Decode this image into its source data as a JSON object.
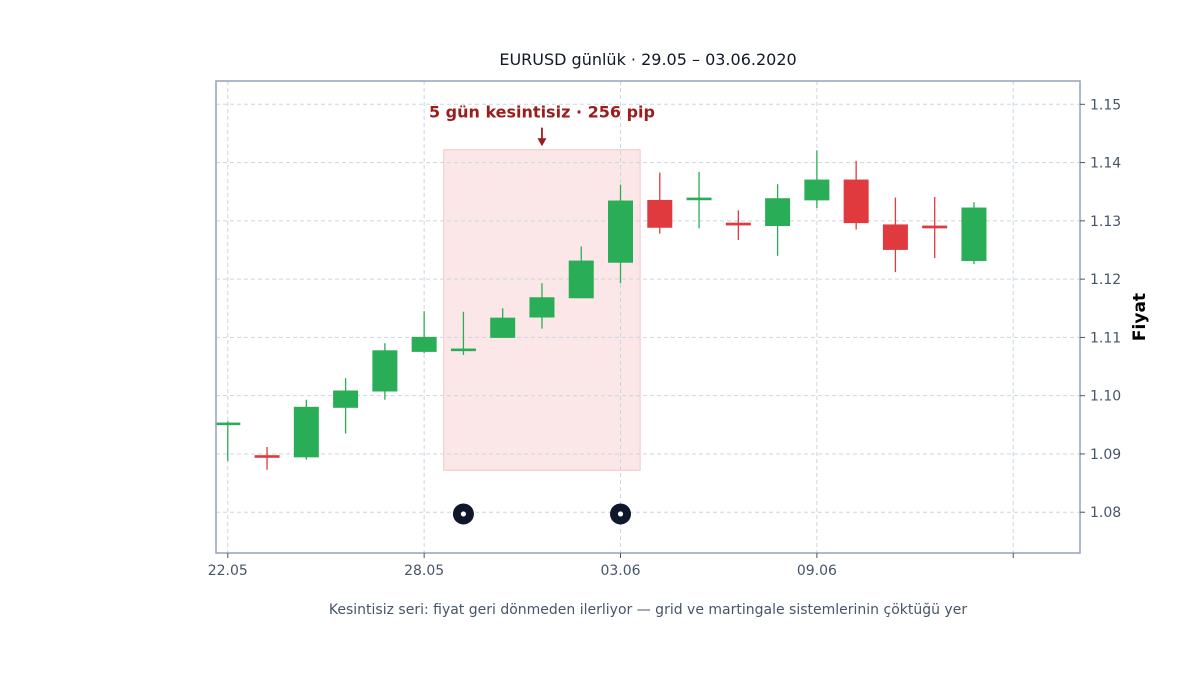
{
  "chart_data": {
    "type": "candlestick",
    "title": "EURUSD günlük · 29.05 – 03.06.2020",
    "ylabel": "Fiyat",
    "caption": "Kesintisiz seri: fiyat geri dönmeden ilerliyor — grid ve martingale sistemlerinin çöktüğü yer",
    "y_axis_position": "right",
    "ylim": [
      1.073,
      1.154
    ],
    "yticks": [
      1.08,
      1.09,
      1.1,
      1.11,
      1.12,
      1.13,
      1.14,
      1.15
    ],
    "ytick_labels": [
      "1.08",
      "1.09",
      "1.10",
      "1.11",
      "1.12",
      "1.13",
      "1.14",
      "1.15"
    ],
    "xlim": [
      -0.3,
      21.7
    ],
    "xticks": [
      {
        "i": 0,
        "label": "22.05"
      },
      {
        "i": 5,
        "label": "28.05"
      },
      {
        "i": 10,
        "label": "03.06"
      },
      {
        "i": 15,
        "label": "09.06"
      },
      {
        "i": 20,
        "label": ""
      }
    ],
    "grid": true,
    "colors": {
      "up": "#2aad57",
      "down": "#e03a3e",
      "highlight": "#fbe7e7",
      "annotation": "#9b1c1c",
      "marker": "#0f172a"
    },
    "candles": [
      {
        "i": 0,
        "open": 1.0953,
        "high": 1.0956,
        "low": 1.0888,
        "close": 1.0953
      },
      {
        "i": 1,
        "open": 1.0897,
        "high": 1.0912,
        "low": 1.0873,
        "close": 1.0895
      },
      {
        "i": 2,
        "open": 1.0895,
        "high": 1.0993,
        "low": 1.089,
        "close": 1.098
      },
      {
        "i": 3,
        "open": 1.098,
        "high": 1.103,
        "low": 1.0935,
        "close": 1.1008
      },
      {
        "i": 4,
        "open": 1.1008,
        "high": 1.109,
        "low": 1.0993,
        "close": 1.1077
      },
      {
        "i": 5,
        "open": 1.1076,
        "high": 1.1145,
        "low": 1.1073,
        "close": 1.11
      },
      {
        "i": 6,
        "open": 1.1078,
        "high": 1.1144,
        "low": 1.107,
        "close": 1.108
      },
      {
        "i": 7,
        "open": 1.11,
        "high": 1.115,
        "low": 1.11,
        "close": 1.1133
      },
      {
        "i": 8,
        "open": 1.1135,
        "high": 1.1193,
        "low": 1.1115,
        "close": 1.1168
      },
      {
        "i": 9,
        "open": 1.1168,
        "high": 1.1256,
        "low": 1.1168,
        "close": 1.1231
      },
      {
        "i": 10,
        "open": 1.1229,
        "high": 1.1362,
        "low": 1.1193,
        "close": 1.1334
      },
      {
        "i": 11,
        "open": 1.1335,
        "high": 1.1383,
        "low": 1.1278,
        "close": 1.1289
      },
      {
        "i": 12,
        "open": 1.1337,
        "high": 1.1384,
        "low": 1.1287,
        "close": 1.1339
      },
      {
        "i": 13,
        "open": 1.1296,
        "high": 1.1318,
        "low": 1.1267,
        "close": 1.1293
      },
      {
        "i": 14,
        "open": 1.1292,
        "high": 1.1363,
        "low": 1.124,
        "close": 1.1338
      },
      {
        "i": 15,
        "open": 1.1336,
        "high": 1.1421,
        "low": 1.1322,
        "close": 1.137
      },
      {
        "i": 16,
        "open": 1.137,
        "high": 1.1403,
        "low": 1.1285,
        "close": 1.1297
      },
      {
        "i": 17,
        "open": 1.1293,
        "high": 1.134,
        "low": 1.1212,
        "close": 1.1251
      },
      {
        "i": 18,
        "open": 1.1291,
        "high": 1.1341,
        "low": 1.1236,
        "close": 1.1288
      },
      {
        "i": 19,
        "open": 1.1232,
        "high": 1.1332,
        "low": 1.1226,
        "close": 1.1322
      }
    ],
    "highlight": {
      "x_start": 5.5,
      "x_end": 10.5,
      "y_low": 1.0872,
      "y_high": 1.1422
    },
    "annotation": {
      "text": "5 gün kesintisiz · 256 pip",
      "arrow_x": 8.0,
      "text_y": 1.1488,
      "arrow_from_y": 1.146,
      "arrow_to_y": 1.1428
    },
    "markers": [
      {
        "i": 6,
        "y": 1.0797
      },
      {
        "i": 10,
        "y": 1.0797
      }
    ]
  }
}
